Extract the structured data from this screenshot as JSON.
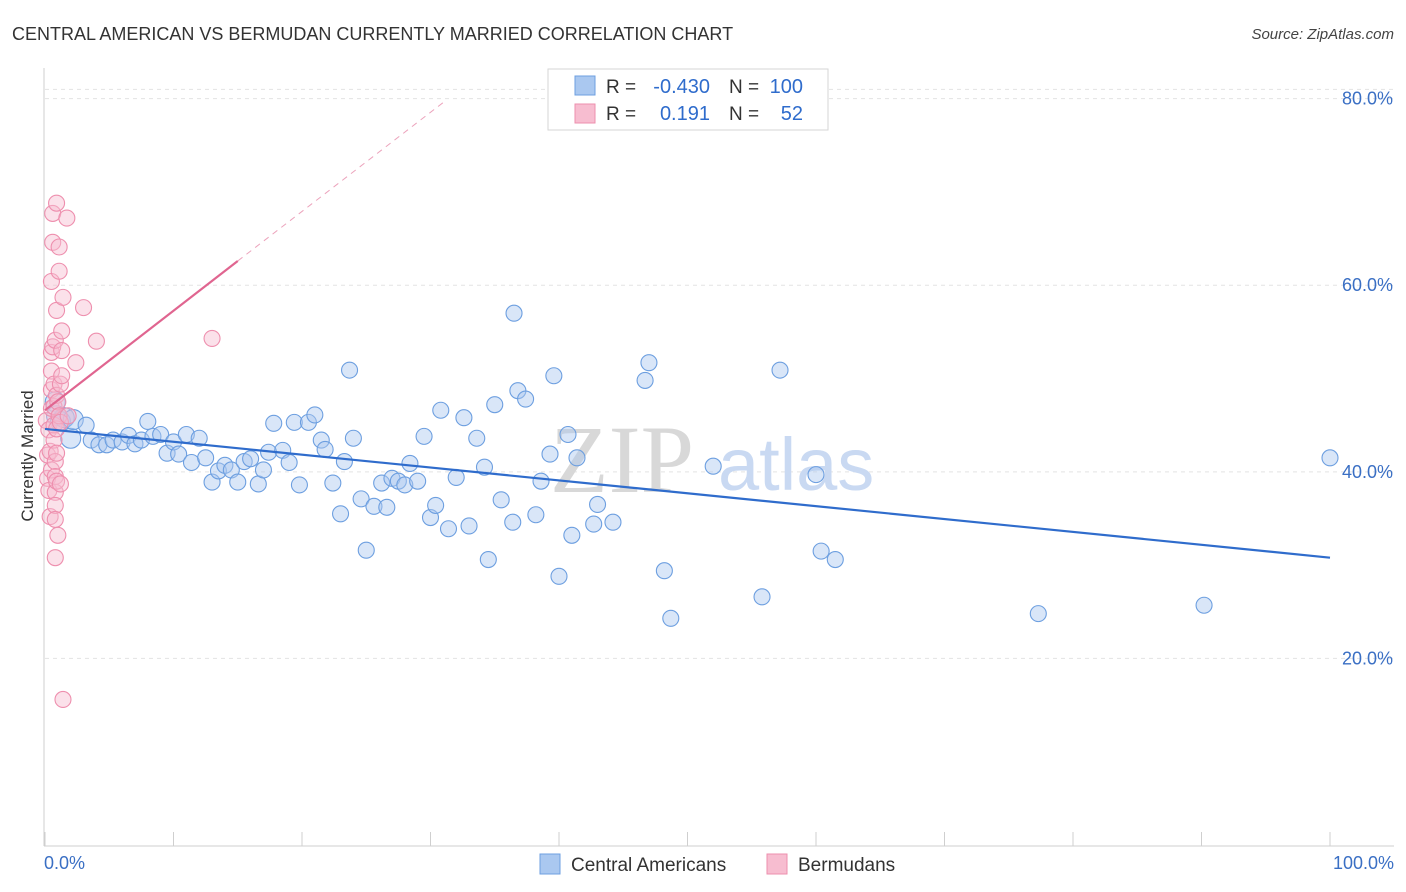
{
  "chart_data": {
    "type": "scatter",
    "title": "CENTRAL AMERICAN VS BERMUDAN CURRENTLY MARRIED CORRELATION CHART",
    "source": "Source: ZipAtlas.com",
    "ylabel": "Currently Married",
    "xlabel": "",
    "xlim": [
      0,
      100
    ],
    "ylim": [
      0,
      82
    ],
    "x_tick_labels": [
      "0.0%",
      "100.0%"
    ],
    "y_ticks": [
      20,
      40,
      60,
      80
    ],
    "y_tick_labels": [
      "20.0%",
      "40.0%",
      "60.0%",
      "80.0%"
    ],
    "grid": "horizontal dashed",
    "watermark": {
      "part1": "ZIP",
      "part2": "atlas"
    },
    "legend": {
      "r_label": "R =",
      "n_label": "N =",
      "rows": [
        {
          "series": "Central Americans",
          "r": "-0.430",
          "n": "100",
          "color": "#8ab4e8"
        },
        {
          "series": "Bermudans",
          "r": "0.191",
          "n": "52",
          "color": "#f4a3bd"
        }
      ]
    },
    "series": [
      {
        "name": "Central Americans",
        "color": "#6d9fe0",
        "fill": "#aac8f0",
        "trend_color": "#2f6ccc",
        "trend": {
          "x": [
            0,
            100
          ],
          "y": [
            44.6,
            30.8
          ]
        },
        "points": [
          [
            0.8,
            47.5
          ],
          [
            0.9,
            46.0
          ],
          [
            1.2,
            45.4
          ],
          [
            1.5,
            45.8
          ],
          [
            2.0,
            43.6
          ],
          [
            2.2,
            45.6
          ],
          [
            3.2,
            45.0
          ],
          [
            3.6,
            43.4
          ],
          [
            4.2,
            42.9
          ],
          [
            4.8,
            42.9
          ],
          [
            5.3,
            43.4
          ],
          [
            6.0,
            43.2
          ],
          [
            6.5,
            43.9
          ],
          [
            7.0,
            43.0
          ],
          [
            7.5,
            43.4
          ],
          [
            8.0,
            45.4
          ],
          [
            8.4,
            43.8
          ],
          [
            9.0,
            44.0
          ],
          [
            9.5,
            42.0
          ],
          [
            10.0,
            43.2
          ],
          [
            10.4,
            41.9
          ],
          [
            11.0,
            44.0
          ],
          [
            11.4,
            41.0
          ],
          [
            12.0,
            43.6
          ],
          [
            12.5,
            41.5
          ],
          [
            13.0,
            38.9
          ],
          [
            13.5,
            40.1
          ],
          [
            14.0,
            40.7
          ],
          [
            14.5,
            40.2
          ],
          [
            15.0,
            38.9
          ],
          [
            15.5,
            41.1
          ],
          [
            16.0,
            41.4
          ],
          [
            16.6,
            38.7
          ],
          [
            17.0,
            40.2
          ],
          [
            17.4,
            42.1
          ],
          [
            17.8,
            45.2
          ],
          [
            18.5,
            42.3
          ],
          [
            19.0,
            41.0
          ],
          [
            19.4,
            45.3
          ],
          [
            19.8,
            38.6
          ],
          [
            20.5,
            45.3
          ],
          [
            21.0,
            46.1
          ],
          [
            21.5,
            43.4
          ],
          [
            21.8,
            42.4
          ],
          [
            22.4,
            38.8
          ],
          [
            23.0,
            35.5
          ],
          [
            23.3,
            41.1
          ],
          [
            23.7,
            50.9
          ],
          [
            24.0,
            43.6
          ],
          [
            24.6,
            37.1
          ],
          [
            25.0,
            31.6
          ],
          [
            25.6,
            36.3
          ],
          [
            26.2,
            38.8
          ],
          [
            26.6,
            36.2
          ],
          [
            27.0,
            39.3
          ],
          [
            27.5,
            39.0
          ],
          [
            28.0,
            38.6
          ],
          [
            28.4,
            40.9
          ],
          [
            29.0,
            39.0
          ],
          [
            29.5,
            43.8
          ],
          [
            30.0,
            35.1
          ],
          [
            30.4,
            36.4
          ],
          [
            30.8,
            46.6
          ],
          [
            31.4,
            33.9
          ],
          [
            32.0,
            39.4
          ],
          [
            32.6,
            45.8
          ],
          [
            33.0,
            34.2
          ],
          [
            33.6,
            43.6
          ],
          [
            34.2,
            40.5
          ],
          [
            34.5,
            30.6
          ],
          [
            35.0,
            47.2
          ],
          [
            35.5,
            37.0
          ],
          [
            36.4,
            34.6
          ],
          [
            36.8,
            48.7
          ],
          [
            37.4,
            47.8
          ],
          [
            38.2,
            35.4
          ],
          [
            38.6,
            39.0
          ],
          [
            39.3,
            41.9
          ],
          [
            39.6,
            50.3
          ],
          [
            40.0,
            28.8
          ],
          [
            40.7,
            44.0
          ],
          [
            41.0,
            33.2
          ],
          [
            41.4,
            41.5
          ],
          [
            42.7,
            34.4
          ],
          [
            43.0,
            36.5
          ],
          [
            44.2,
            34.6
          ],
          [
            46.7,
            49.8
          ],
          [
            47.0,
            51.7
          ],
          [
            48.2,
            29.4
          ],
          [
            48.7,
            24.3
          ],
          [
            52.0,
            40.6
          ],
          [
            55.8,
            26.6
          ],
          [
            57.2,
            50.9
          ],
          [
            60.0,
            39.7
          ],
          [
            60.4,
            31.5
          ],
          [
            61.5,
            30.6
          ],
          [
            77.3,
            24.8
          ],
          [
            90.2,
            25.7
          ],
          [
            100.0,
            41.5
          ],
          [
            36.5,
            57.0
          ]
        ]
      },
      {
        "name": "Bermudans",
        "color": "#ee8fae",
        "fill": "#f7bdd0",
        "trend_color": "#e06590",
        "trend": {
          "x": [
            0,
            15
          ],
          "y": [
            46.6,
            62.6
          ]
        },
        "trend_ext": {
          "x": [
            15,
            31
          ],
          "y": [
            62.6,
            79.6
          ]
        },
        "points": [
          [
            0.1,
            45.5
          ],
          [
            0.2,
            41.8
          ],
          [
            0.2,
            39.3
          ],
          [
            0.3,
            44.5
          ],
          [
            0.3,
            38.0
          ],
          [
            0.4,
            42.2
          ],
          [
            0.4,
            35.2
          ],
          [
            0.5,
            40.2
          ],
          [
            0.5,
            46.8
          ],
          [
            0.5,
            48.8
          ],
          [
            0.5,
            50.8
          ],
          [
            0.5,
            52.8
          ],
          [
            0.5,
            60.4
          ],
          [
            0.6,
            64.6
          ],
          [
            0.6,
            67.7
          ],
          [
            0.6,
            53.4
          ],
          [
            0.7,
            49.4
          ],
          [
            0.7,
            47.0
          ],
          [
            0.7,
            45.0
          ],
          [
            0.7,
            43.4
          ],
          [
            0.8,
            41.1
          ],
          [
            0.8,
            39.5
          ],
          [
            0.8,
            37.8
          ],
          [
            0.8,
            36.4
          ],
          [
            0.8,
            34.9
          ],
          [
            0.8,
            30.8
          ],
          [
            0.8,
            54.1
          ],
          [
            0.9,
            68.8
          ],
          [
            0.9,
            57.3
          ],
          [
            0.9,
            48.2
          ],
          [
            0.9,
            44.6
          ],
          [
            0.9,
            42.0
          ],
          [
            0.9,
            39.0
          ],
          [
            1.0,
            47.5
          ],
          [
            1.0,
            33.2
          ],
          [
            1.1,
            64.1
          ],
          [
            1.1,
            61.5
          ],
          [
            1.1,
            46.0
          ],
          [
            1.2,
            49.4
          ],
          [
            1.2,
            45.3
          ],
          [
            1.2,
            38.7
          ],
          [
            1.3,
            55.1
          ],
          [
            1.3,
            53.0
          ],
          [
            1.3,
            50.3
          ],
          [
            1.4,
            58.7
          ],
          [
            1.4,
            15.6
          ],
          [
            1.7,
            67.2
          ],
          [
            1.8,
            46.0
          ],
          [
            2.4,
            51.7
          ],
          [
            3.0,
            57.6
          ],
          [
            4.0,
            54.0
          ],
          [
            13.0,
            54.3
          ]
        ]
      }
    ]
  },
  "bottom_legend": {
    "items": [
      {
        "label": "Central Americans",
        "color": "#aac8f0",
        "stroke": "#6d9fe0"
      },
      {
        "label": "Bermudans",
        "color": "#f7bdd0",
        "stroke": "#ee8fae"
      }
    ]
  }
}
